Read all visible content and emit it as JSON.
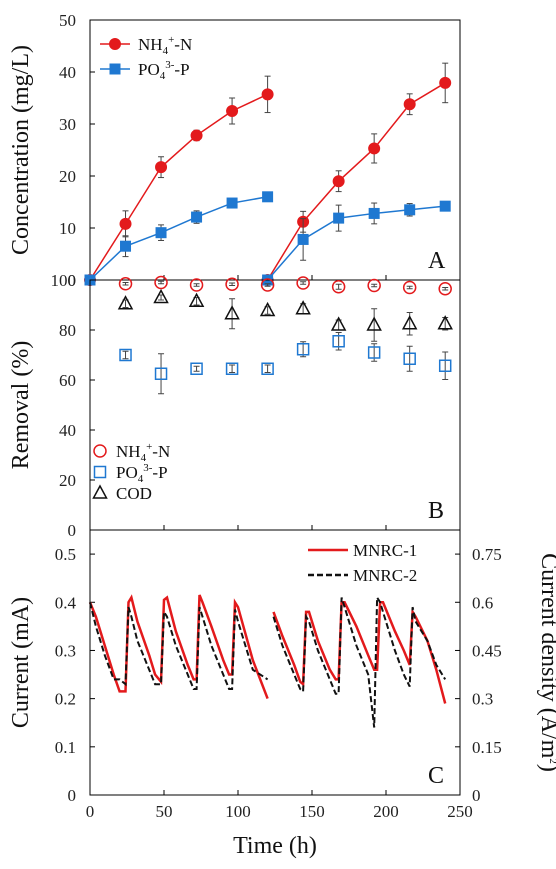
{
  "chart_data": [
    {
      "panel": "A",
      "type": "line",
      "ylabel": "Concentration (mg/L)",
      "ylim": [
        0,
        50
      ],
      "yticks": [
        0,
        10,
        20,
        30,
        40,
        50
      ],
      "xlim": [
        0,
        250
      ],
      "error_bars": true,
      "legend": "top-left",
      "series": [
        {
          "name": "NH4+-N",
          "label_main": "NH",
          "label_sub": "4",
          "label_sup": "+",
          "label_tail": "-N",
          "color": "#e31a1c",
          "marker": "circle",
          "segments": [
            {
              "x": [
                0,
                24,
                48,
                72,
                96,
                120
              ],
              "y": [
                0,
                10.8,
                21.7,
                27.8,
                32.5,
                35.7
              ],
              "err": [
                0,
                2.5,
                2.0,
                1.0,
                2.5,
                3.5
              ]
            },
            {
              "x": [
                120,
                144,
                168,
                192,
                216,
                240
              ],
              "y": [
                0,
                11.2,
                19.0,
                25.3,
                33.8,
                37.9
              ],
              "err": [
                0,
                2.0,
                2.0,
                2.8,
                2.0,
                3.8
              ]
            }
          ]
        },
        {
          "name": "PO43--P",
          "label_main": "PO",
          "label_sub": "4",
          "label_sup": "3-",
          "label_tail": "-P",
          "color": "#1f78d1",
          "marker": "square",
          "segments": [
            {
              "x": [
                0,
                24,
                48,
                72,
                96,
                120
              ],
              "y": [
                0,
                6.5,
                9.1,
                12.1,
                14.8,
                16.0
              ],
              "err": [
                0,
                2.0,
                1.5,
                1.2,
                0.5,
                0.5
              ]
            },
            {
              "x": [
                120,
                144,
                168,
                192,
                216,
                240
              ],
              "y": [
                0,
                7.8,
                11.9,
                12.8,
                13.5,
                14.2
              ],
              "err": [
                0,
                4.0,
                2.5,
                2.0,
                1.2,
                0.8
              ]
            }
          ]
        }
      ]
    },
    {
      "panel": "B",
      "type": "scatter",
      "ylabel": "Removal (%)",
      "ylim": [
        0,
        100
      ],
      "yticks": [
        0,
        20,
        40,
        60,
        80,
        100
      ],
      "xlim": [
        0,
        250
      ],
      "error_bars": true,
      "legend": "bottom-left",
      "series": [
        {
          "name": "NH4+-N",
          "label_main": "NH",
          "label_sub": "4",
          "label_sup": "+",
          "label_tail": "-N",
          "color": "#e31a1c",
          "marker": "open-circle",
          "x": [
            24,
            48,
            72,
            96,
            120,
            144,
            168,
            192,
            216,
            240
          ],
          "y": [
            98.5,
            99.0,
            98.0,
            98.3,
            98.0,
            98.8,
            97.3,
            97.8,
            97.0,
            96.5
          ],
          "err": [
            0.5,
            0.5,
            0.5,
            0.5,
            0.5,
            0.5,
            1.0,
            0.5,
            0.5,
            0.5
          ]
        },
        {
          "name": "PO43--P",
          "label_main": "PO",
          "label_sub": "4",
          "label_sup": "3-",
          "label_tail": "-P",
          "color": "#1f78d1",
          "marker": "open-square",
          "x": [
            24,
            48,
            72,
            96,
            120,
            144,
            168,
            192,
            216,
            240
          ],
          "y": [
            70.0,
            62.5,
            64.5,
            64.5,
            64.5,
            72.3,
            75.5,
            71.0,
            68.5,
            65.7
          ],
          "err": [
            1.5,
            8.0,
            1.0,
            1.5,
            1.5,
            3.0,
            3.5,
            3.5,
            5.0,
            5.5
          ]
        },
        {
          "name": "COD",
          "label_main": "COD",
          "label_sub": "",
          "label_sup": "",
          "label_tail": "",
          "color": "#111111",
          "marker": "open-triangle",
          "x": [
            24,
            48,
            72,
            96,
            120,
            144,
            168,
            192,
            216,
            240
          ],
          "y": [
            90.5,
            93.0,
            91.5,
            86.5,
            87.8,
            88.5,
            82.0,
            82.0,
            82.5,
            82.5
          ],
          "err": [
            1.5,
            1.0,
            1.5,
            6.0,
            1.5,
            2.0,
            2.0,
            6.5,
            4.5,
            2.5
          ]
        }
      ]
    },
    {
      "panel": "C",
      "type": "line",
      "xlabel": "Time (h)",
      "xlim": [
        0,
        250
      ],
      "xticks": [
        0,
        50,
        100,
        150,
        200,
        250
      ],
      "ylabel": "Current (mA)",
      "ylim": [
        0,
        0.55
      ],
      "yticks": [
        0,
        0.1,
        0.2,
        0.3,
        0.4,
        0.5
      ],
      "ylabel_right": "Current density (A/m",
      "ylabel_right_sup": "2",
      "ylabel_right_tail": ")",
      "ylim_right": [
        0,
        0.825
      ],
      "yticks_right": [
        "0",
        "0.15",
        "0.3",
        "0.45",
        "0.6",
        "0.75"
      ],
      "legend": "top-right",
      "series": [
        {
          "name": "MNRC-1",
          "color": "#e31a1c",
          "dash": "solid",
          "x": [
            0,
            4,
            10,
            16,
            20,
            24,
            26,
            28,
            32,
            40,
            44,
            48,
            50,
            52,
            58,
            66,
            70,
            72,
            74,
            76,
            82,
            90,
            94,
            96,
            98,
            100,
            110,
            120,
            122,
            124,
            130,
            138,
            142,
            144,
            146,
            148,
            154,
            162,
            166,
            168,
            170,
            172,
            180,
            188,
            192,
            194,
            196,
            198,
            206,
            212,
            216,
            218,
            220,
            228,
            234,
            240
          ],
          "y": [
            0.4,
            0.37,
            0.31,
            0.25,
            0.215,
            0.215,
            0.4,
            0.41,
            0.36,
            0.29,
            0.25,
            0.235,
            0.405,
            0.41,
            0.34,
            0.27,
            0.24,
            0.24,
            0.415,
            0.4,
            0.35,
            0.28,
            0.25,
            0.25,
            0.4,
            0.39,
            0.28,
            0.2,
            null,
            0.38,
            0.33,
            0.27,
            0.235,
            0.23,
            0.38,
            0.38,
            0.32,
            0.26,
            0.24,
            0.24,
            0.4,
            0.4,
            0.35,
            0.29,
            0.26,
            0.26,
            0.4,
            0.4,
            0.34,
            0.3,
            0.27,
            0.38,
            0.37,
            0.32,
            0.26,
            0.19
          ]
        },
        {
          "name": "MNRC-2",
          "color": "#111111",
          "dash": "dashed",
          "x": [
            0,
            4,
            10,
            16,
            20,
            24,
            26,
            28,
            32,
            40,
            44,
            48,
            50,
            52,
            58,
            66,
            70,
            72,
            74,
            76,
            82,
            90,
            94,
            96,
            98,
            100,
            110,
            120,
            122,
            124,
            130,
            138,
            142,
            144,
            146,
            148,
            154,
            162,
            166,
            168,
            170,
            172,
            180,
            188,
            192,
            194,
            196,
            198,
            206,
            212,
            216,
            218,
            220,
            228,
            234,
            240
          ],
          "y": [
            0.4,
            0.35,
            0.29,
            0.24,
            0.24,
            0.23,
            0.39,
            0.37,
            0.32,
            0.26,
            0.23,
            0.23,
            0.38,
            0.37,
            0.31,
            0.25,
            0.22,
            0.22,
            0.39,
            0.37,
            0.31,
            0.25,
            0.22,
            0.22,
            0.385,
            0.36,
            0.26,
            0.24,
            null,
            0.37,
            0.31,
            0.25,
            0.22,
            0.215,
            0.37,
            0.36,
            0.3,
            0.24,
            0.21,
            0.21,
            0.41,
            0.39,
            0.31,
            0.25,
            0.14,
            0.41,
            0.4,
            0.38,
            0.3,
            0.25,
            0.225,
            0.39,
            0.36,
            0.32,
            0.27,
            0.24
          ]
        }
      ]
    }
  ],
  "panel_letters": [
    "A",
    "B",
    "C"
  ]
}
